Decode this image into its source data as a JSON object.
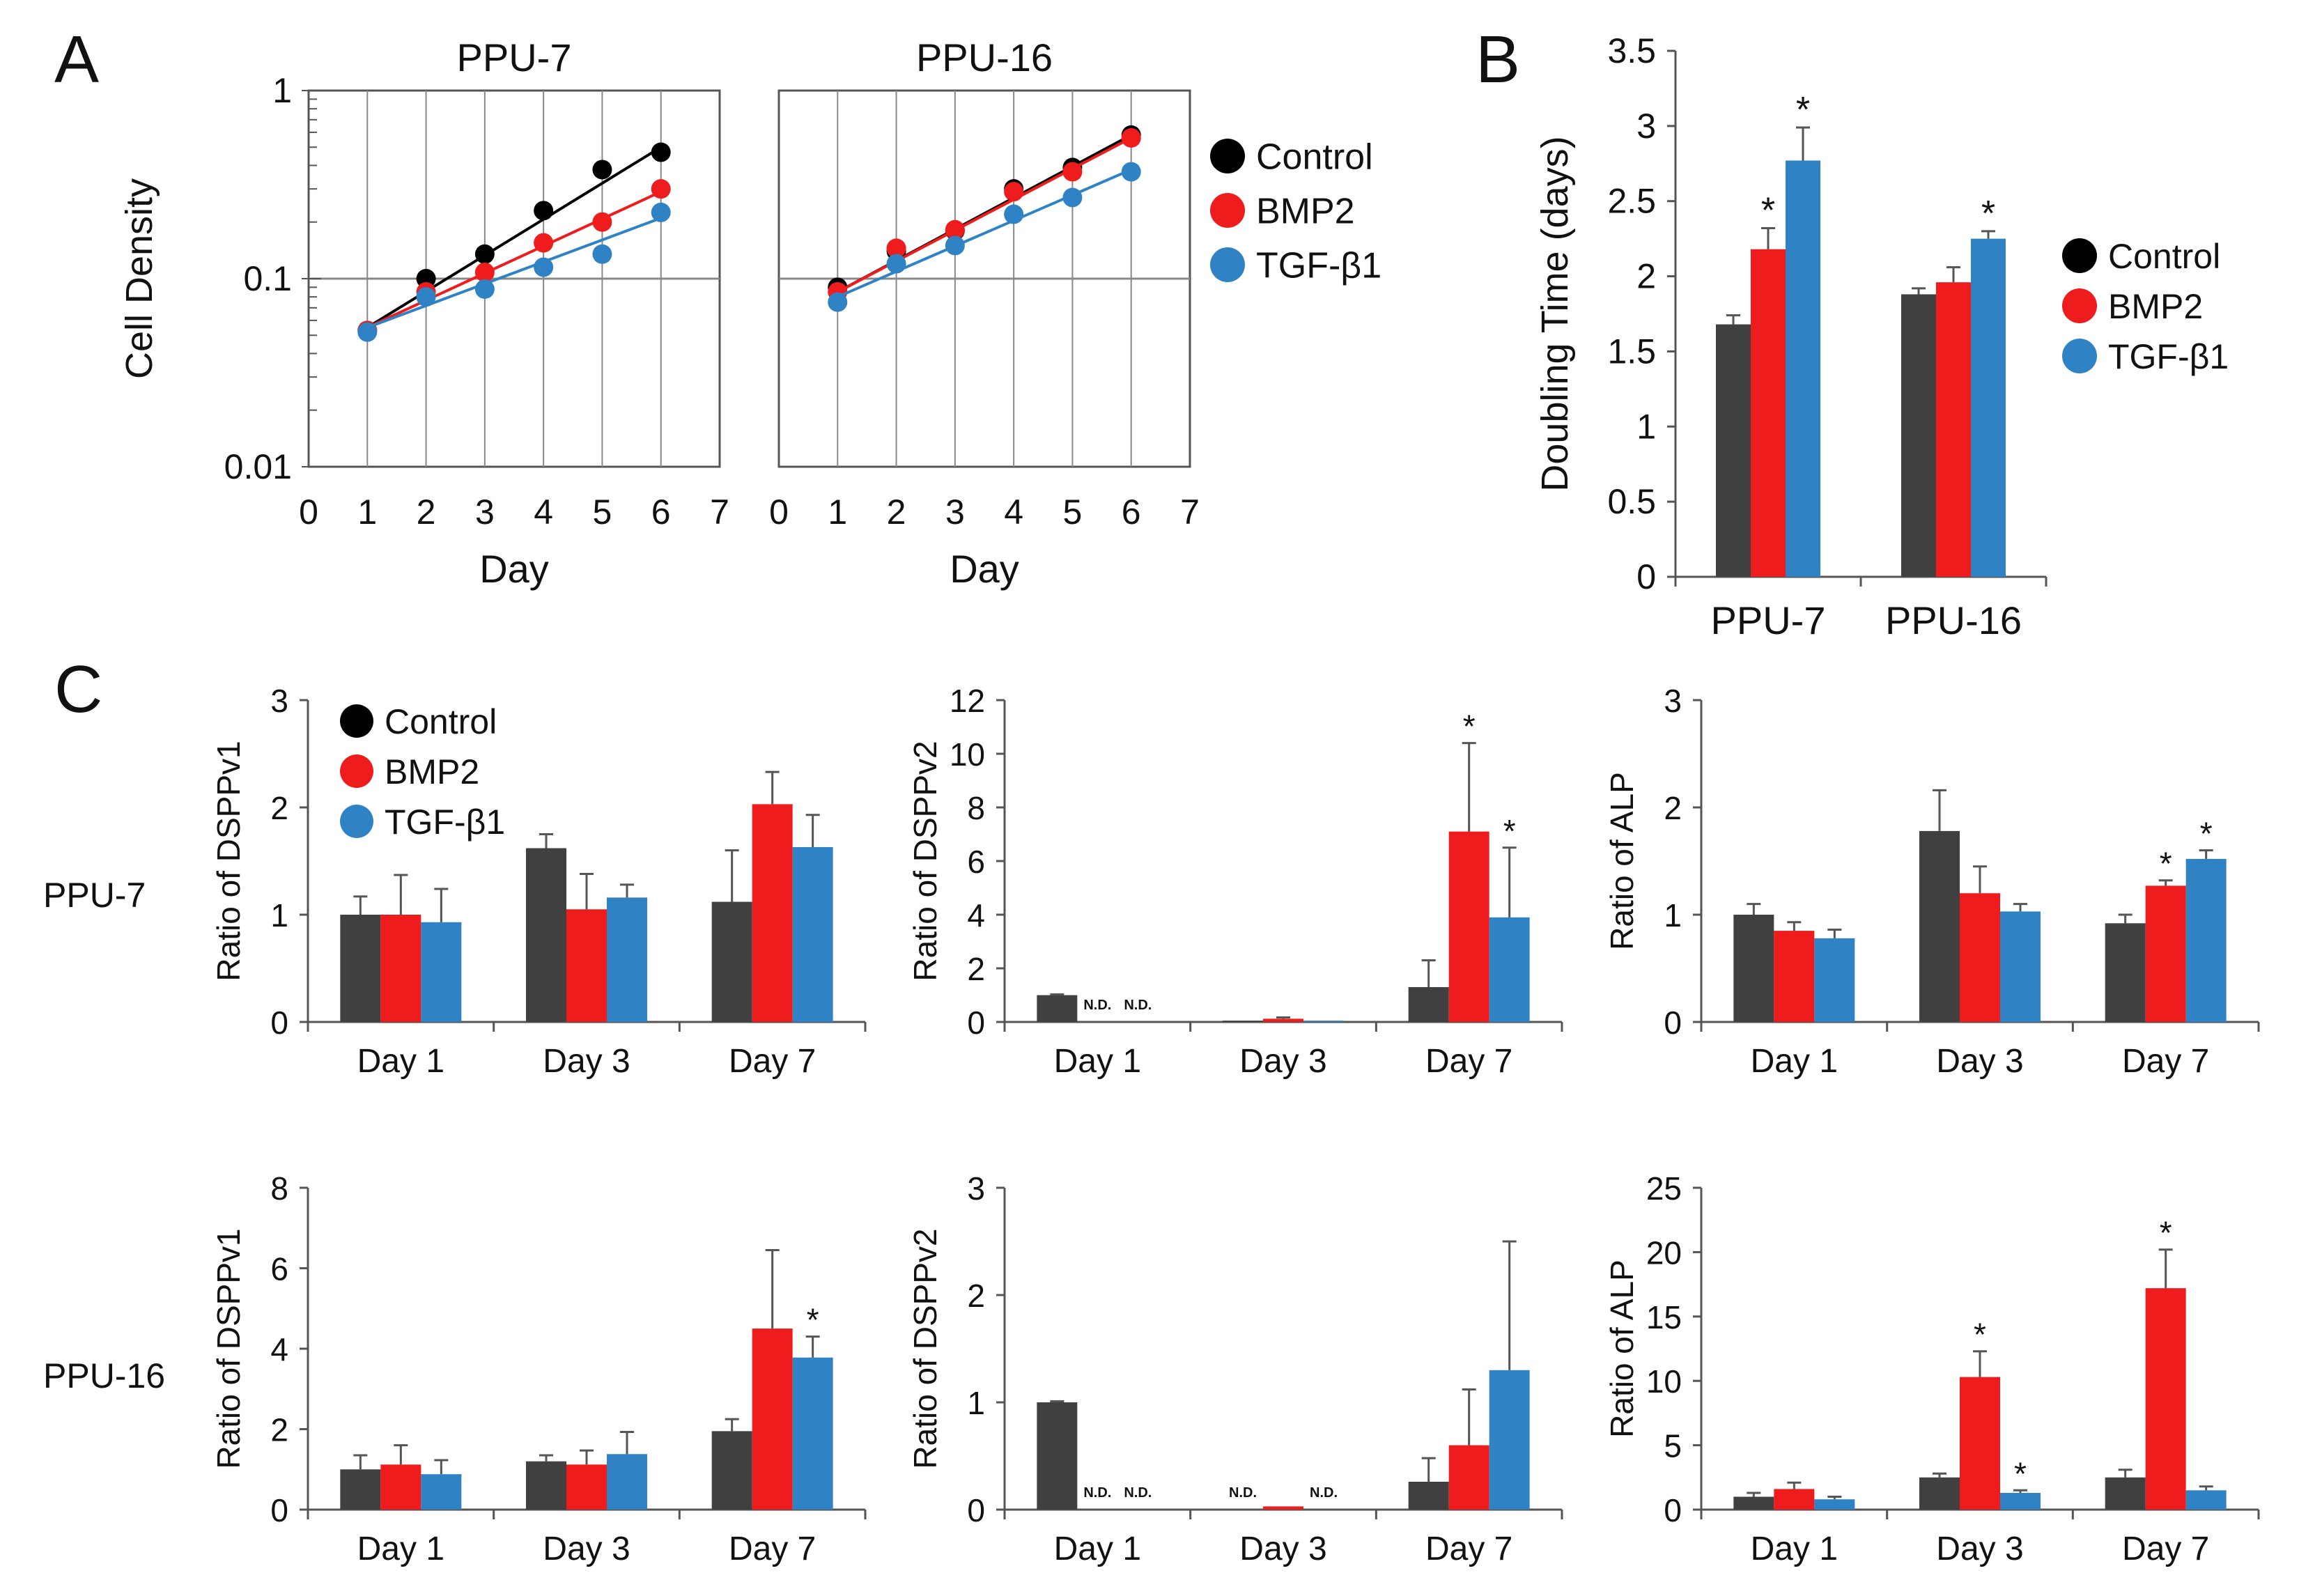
{
  "panel_labels": {
    "a": "A",
    "b": "B",
    "c": "C"
  },
  "row_labels": {
    "ppu7": "PPU-7",
    "ppu16": "PPU-16"
  },
  "legend": [
    {
      "name": "Control",
      "color": "#000000"
    },
    {
      "name": "BMP2",
      "color": "#ee1c1c"
    },
    {
      "name": "TGF-β1",
      "color": "#2f82c4"
    }
  ],
  "colors": {
    "control_bar": "#404040",
    "bmp2": "#ee1c1c",
    "tgf": "#2f82c4",
    "grid": "#888888",
    "axis": "#555555"
  },
  "chart_data": [
    {
      "id": "A1",
      "type": "scatter",
      "title": "PPU-7",
      "xlabel": "Day",
      "ylabel": "Cell Density",
      "yscale": "log",
      "xlim": [
        0,
        7
      ],
      "ylim": [
        0.01,
        1
      ],
      "xticks": [
        "0",
        "1",
        "2",
        "3",
        "4",
        "5",
        "6",
        "7"
      ],
      "yticks": [
        {
          "v": 0.01,
          "label": "0.01"
        },
        {
          "v": 0.1,
          "label": "0.1"
        },
        {
          "v": 1,
          "label": "1"
        }
      ],
      "x": [
        1,
        2,
        3,
        4,
        5,
        6
      ],
      "series": [
        {
          "name": "Control",
          "values": [
            0.053,
            0.1,
            0.135,
            0.23,
            0.38,
            0.47
          ],
          "fit": [
            0.055,
            0.5
          ]
        },
        {
          "name": "BMP2",
          "values": [
            0.053,
            0.085,
            0.108,
            0.155,
            0.2,
            0.3
          ],
          "fit": [
            0.055,
            0.29
          ]
        },
        {
          "name": "TGF-β1",
          "values": [
            0.052,
            0.08,
            0.088,
            0.115,
            0.135,
            0.225
          ],
          "fit": [
            0.055,
            0.21
          ]
        }
      ]
    },
    {
      "id": "A2",
      "type": "scatter",
      "title": "PPU-16",
      "xlabel": "Day",
      "ylabel": "",
      "yscale": "log",
      "xlim": [
        0,
        7
      ],
      "ylim": [
        0.01,
        1
      ],
      "xticks": [
        "0",
        "1",
        "2",
        "3",
        "4",
        "5",
        "6",
        "7"
      ],
      "yticks": [],
      "x": [
        1,
        2,
        3,
        4,
        5,
        6
      ],
      "series": [
        {
          "name": "Control",
          "values": [
            0.09,
            0.14,
            0.18,
            0.3,
            0.39,
            0.58
          ],
          "fit": [
            0.085,
            0.58
          ]
        },
        {
          "name": "BMP2",
          "values": [
            0.085,
            0.145,
            0.182,
            0.29,
            0.37,
            0.56
          ],
          "fit": [
            0.085,
            0.56
          ]
        },
        {
          "name": "TGF-β1",
          "values": [
            0.075,
            0.12,
            0.15,
            0.22,
            0.27,
            0.37
          ],
          "fit": [
            0.08,
            0.38
          ]
        }
      ]
    },
    {
      "id": "B",
      "type": "bar",
      "ylabel": "Doubling Time (days)",
      "ylim": [
        0,
        3.5
      ],
      "yticks": [
        "0",
        "0.5",
        "1",
        "1.5",
        "2",
        "2.5",
        "3",
        "3.5"
      ],
      "categories": [
        "PPU-7",
        "PPU-16"
      ],
      "series": [
        {
          "name": "Control",
          "values": [
            1.68,
            1.88
          ],
          "err": [
            0.06,
            0.04
          ],
          "sig": [
            false,
            false
          ]
        },
        {
          "name": "BMP2",
          "values": [
            2.18,
            1.96
          ],
          "err": [
            0.14,
            0.1
          ],
          "sig": [
            true,
            false
          ]
        },
        {
          "name": "TGF-β1",
          "values": [
            2.77,
            2.25
          ],
          "err": [
            0.22,
            0.05
          ],
          "sig": [
            true,
            true
          ]
        }
      ]
    },
    {
      "id": "C1",
      "type": "bar",
      "ylabel": "Ratio of DSPPv1",
      "ylim": [
        0,
        3
      ],
      "yticks": [
        "0",
        "1",
        "2",
        "3"
      ],
      "categories": [
        "Day 1",
        "Day 3",
        "Day 7"
      ],
      "series": [
        {
          "name": "Control",
          "values": [
            1.0,
            1.62,
            1.12
          ],
          "err": [
            0.17,
            0.13,
            0.48
          ],
          "sig": [
            false,
            false,
            false
          ]
        },
        {
          "name": "BMP2",
          "values": [
            1.0,
            1.05,
            2.03
          ],
          "err": [
            0.37,
            0.33,
            0.3
          ],
          "sig": [
            false,
            false,
            false
          ]
        },
        {
          "name": "TGF-β1",
          "values": [
            0.93,
            1.16,
            1.63
          ],
          "err": [
            0.31,
            0.12,
            0.3
          ],
          "sig": [
            false,
            false,
            false
          ]
        }
      ],
      "nd": []
    },
    {
      "id": "C2",
      "type": "bar",
      "ylabel": "Ratio of DSPPv2",
      "ylim": [
        0,
        12
      ],
      "yticks": [
        "0",
        "2",
        "4",
        "6",
        "8",
        "10",
        "12"
      ],
      "categories": [
        "Day 1",
        "Day 3",
        "Day 7"
      ],
      "series": [
        {
          "name": "Control",
          "values": [
            1.0,
            0.05,
            1.3
          ],
          "err": [
            0.03,
            0.0,
            1.0
          ],
          "sig": [
            false,
            false,
            false
          ]
        },
        {
          "name": "BMP2",
          "values": [
            0,
            0.12,
            7.1
          ],
          "err": [
            0,
            0.05,
            3.3
          ],
          "sig": [
            false,
            false,
            true
          ]
        },
        {
          "name": "TGF-β1",
          "values": [
            0,
            0.05,
            3.9
          ],
          "err": [
            0,
            0.0,
            2.6
          ],
          "sig": [
            false,
            false,
            true
          ]
        }
      ],
      "nd": [
        {
          "cat": 0,
          "series": 1,
          "label": "N.D."
        },
        {
          "cat": 0,
          "series": 2,
          "label": "N.D."
        }
      ]
    },
    {
      "id": "C3",
      "type": "bar",
      "ylabel": "Ratio of ALP",
      "ylim": [
        0,
        3
      ],
      "yticks": [
        "0",
        "1",
        "2",
        "3"
      ],
      "categories": [
        "Day 1",
        "Day 3",
        "Day 7"
      ],
      "series": [
        {
          "name": "Control",
          "values": [
            1.0,
            1.78,
            0.92
          ],
          "err": [
            0.1,
            0.38,
            0.08
          ],
          "sig": [
            false,
            false,
            false
          ]
        },
        {
          "name": "BMP2",
          "values": [
            0.85,
            1.2,
            1.27
          ],
          "err": [
            0.08,
            0.25,
            0.05
          ],
          "sig": [
            false,
            false,
            true
          ]
        },
        {
          "name": "TGF-β1",
          "values": [
            0.78,
            1.03,
            1.52
          ],
          "err": [
            0.08,
            0.07,
            0.08
          ],
          "sig": [
            false,
            false,
            true
          ]
        }
      ],
      "nd": []
    },
    {
      "id": "C4",
      "type": "bar",
      "ylabel": "Ratio of DSPPv1",
      "ylim": [
        0,
        8
      ],
      "yticks": [
        "0",
        "2",
        "4",
        "6",
        "8"
      ],
      "categories": [
        "Day 1",
        "Day 3",
        "Day 7"
      ],
      "series": [
        {
          "name": "Control",
          "values": [
            1.0,
            1.2,
            1.95
          ],
          "err": [
            0.35,
            0.15,
            0.3
          ],
          "sig": [
            false,
            false,
            false
          ]
        },
        {
          "name": "BMP2",
          "values": [
            1.12,
            1.12,
            4.5
          ],
          "err": [
            0.48,
            0.35,
            1.95
          ],
          "sig": [
            false,
            false,
            false
          ]
        },
        {
          "name": "TGF-β1",
          "values": [
            0.88,
            1.38,
            3.78
          ],
          "err": [
            0.35,
            0.55,
            0.52
          ],
          "sig": [
            false,
            false,
            true
          ]
        }
      ],
      "nd": []
    },
    {
      "id": "C5",
      "type": "bar",
      "ylabel": "Ratio of DSPPv2",
      "ylim": [
        0,
        3
      ],
      "yticks": [
        "0",
        "1",
        "2",
        "3"
      ],
      "categories": [
        "Day 1",
        "Day 3",
        "Day 7"
      ],
      "series": [
        {
          "name": "Control",
          "values": [
            1.0,
            0,
            0.26
          ],
          "err": [
            0.01,
            0,
            0.22
          ],
          "sig": [
            false,
            false,
            false
          ]
        },
        {
          "name": "BMP2",
          "values": [
            0,
            0.03,
            0.6
          ],
          "err": [
            0,
            0.0,
            0.52
          ],
          "sig": [
            false,
            false,
            false
          ]
        },
        {
          "name": "TGF-β1",
          "values": [
            0,
            0,
            1.3
          ],
          "err": [
            0,
            0,
            1.2
          ],
          "sig": [
            false,
            false,
            false
          ]
        }
      ],
      "nd": [
        {
          "cat": 0,
          "series": 1,
          "label": "N.D."
        },
        {
          "cat": 0,
          "series": 2,
          "label": "N.D."
        },
        {
          "cat": 1,
          "series": 0,
          "label": "N.D."
        },
        {
          "cat": 1,
          "series": 2,
          "label": "N.D."
        }
      ]
    },
    {
      "id": "C6",
      "type": "bar",
      "ylabel": "Ratio of ALP",
      "ylim": [
        0,
        25
      ],
      "yticks": [
        "0",
        "5",
        "10",
        "15",
        "20",
        "25"
      ],
      "categories": [
        "Day 1",
        "Day 3",
        "Day 7"
      ],
      "series": [
        {
          "name": "Control",
          "values": [
            1.0,
            2.5,
            2.5
          ],
          "err": [
            0.3,
            0.3,
            0.6
          ],
          "sig": [
            false,
            false,
            false
          ]
        },
        {
          "name": "BMP2",
          "values": [
            1.6,
            10.3,
            17.2
          ],
          "err": [
            0.5,
            2.0,
            3.0
          ],
          "sig": [
            false,
            true,
            true
          ]
        },
        {
          "name": "TGF-β1",
          "values": [
            0.8,
            1.3,
            1.5
          ],
          "err": [
            0.2,
            0.2,
            0.3
          ],
          "sig": [
            false,
            true,
            false
          ]
        }
      ],
      "nd": []
    }
  ]
}
